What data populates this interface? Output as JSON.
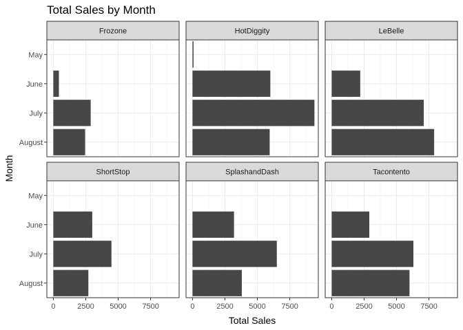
{
  "chart_data": {
    "type": "bar",
    "orientation": "horizontal",
    "faceted": true,
    "title": "Total Sales by Month",
    "xlabel": "Total Sales",
    "ylabel": "Month",
    "categories": [
      "May",
      "June",
      "July",
      "August"
    ],
    "xlim": [
      -500,
      9700
    ],
    "xticks": [
      0,
      2500,
      5000,
      7500
    ],
    "xtick_labels": [
      "0",
      "2500",
      "5000",
      "7500"
    ],
    "grid": true,
    "bar_color": "#474747",
    "strip_color": "#d9d9d9",
    "series": [
      {
        "name": "Frozone",
        "values": [
          0,
          430,
          2880,
          2450
        ]
      },
      {
        "name": "HotDiggity",
        "values": [
          30,
          6000,
          9400,
          5950
        ]
      },
      {
        "name": "LeBelle",
        "values": [
          0,
          2200,
          7100,
          7900
        ]
      },
      {
        "name": "ShortStop",
        "values": [
          0,
          3000,
          4480,
          2700
        ]
      },
      {
        "name": "SplashandDash",
        "values": [
          0,
          3200,
          6500,
          3800
        ]
      },
      {
        "name": "Tacontento",
        "values": [
          0,
          2900,
          6300,
          6000
        ]
      }
    ]
  }
}
